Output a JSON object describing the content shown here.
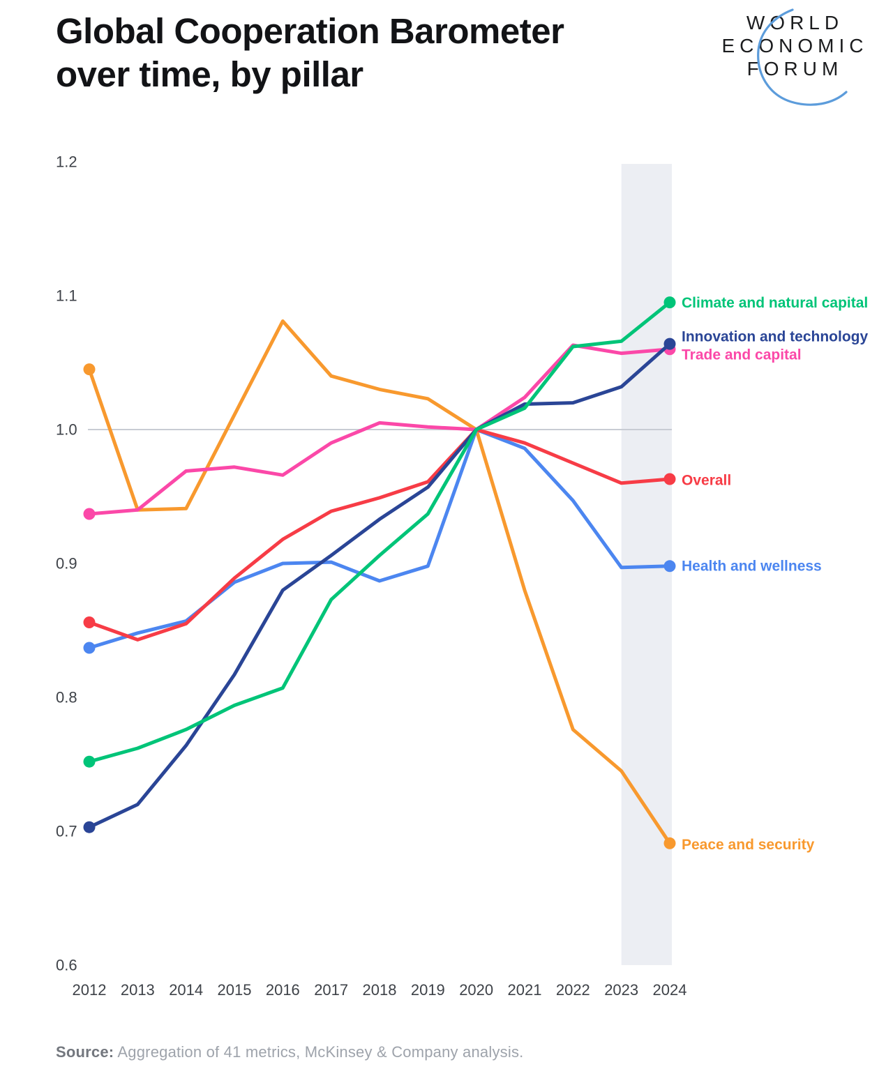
{
  "header": {
    "title_line1": "Global Cooperation Barometer",
    "title_line2": "over time, by pillar",
    "logo": {
      "line1": "WORLD",
      "line2": "ECONOMIC",
      "line3": "FORUM"
    }
  },
  "source": {
    "label": "Source:",
    "text": "Aggregation of 41 metrics, McKinsey & Company analysis."
  },
  "chart_data": {
    "type": "line",
    "title": "Global Cooperation Barometer over time, by pillar",
    "x": [
      2012,
      2013,
      2014,
      2015,
      2016,
      2017,
      2018,
      2019,
      2020,
      2021,
      2022,
      2023,
      2024
    ],
    "series": [
      {
        "id": "climate",
        "name": "Climate and natural capital",
        "color": "#00c478",
        "values": [
          0.752,
          0.762,
          0.776,
          0.794,
          0.807,
          0.873,
          0.906,
          0.937,
          1.0,
          1.016,
          1.062,
          1.066,
          1.095
        ]
      },
      {
        "id": "innovation",
        "name": "Innovation and technology",
        "color": "#2a4596",
        "values": [
          0.703,
          0.72,
          0.764,
          0.817,
          0.88,
          0.906,
          0.933,
          0.957,
          1.0,
          1.019,
          1.02,
          1.032,
          1.064
        ]
      },
      {
        "id": "trade",
        "name": "Trade and capital",
        "color": "#fb48a8",
        "values": [
          0.937,
          0.94,
          0.969,
          0.972,
          0.966,
          0.99,
          1.005,
          1.002,
          1.0,
          1.024,
          1.063,
          1.057,
          1.06
        ]
      },
      {
        "id": "overall",
        "name": "Overall",
        "color": "#f73c46",
        "values": [
          0.856,
          0.843,
          0.855,
          0.889,
          0.918,
          0.939,
          0.949,
          0.961,
          1.0,
          0.99,
          0.975,
          0.96,
          0.963
        ]
      },
      {
        "id": "health",
        "name": "Health and wellness",
        "color": "#4c86f0",
        "values": [
          0.837,
          0.848,
          0.857,
          0.886,
          0.9,
          0.901,
          0.887,
          0.898,
          1.0,
          0.986,
          0.947,
          0.897,
          0.898
        ]
      },
      {
        "id": "peace",
        "name": "Peace and security",
        "color": "#f8992e",
        "values": [
          1.045,
          0.94,
          0.941,
          1.011,
          1.081,
          1.04,
          1.03,
          1.023,
          1.0,
          0.88,
          0.776,
          0.745,
          0.691
        ]
      }
    ],
    "ylim": [
      0.6,
      1.2
    ],
    "yticks": [
      1.2,
      1.1,
      1.0,
      0.9,
      0.8,
      0.7,
      0.6
    ],
    "reference_line": 1.0,
    "highlight_band_years": [
      2023,
      2024
    ],
    "legend_position": "right-of-line-endpoints",
    "grid": "reference-line-only",
    "colors": {
      "band": "#eceef3",
      "reference_line": "#c8ccd4",
      "axis_text": "#3e4248",
      "logo_arc": "#5c9cdb"
    }
  }
}
